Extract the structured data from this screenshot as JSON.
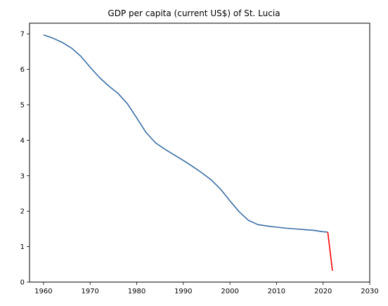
{
  "chart_data": {
    "type": "line",
    "title": "GDP per capita (current US$) of St. Lucia",
    "xlabel": "",
    "ylabel": "",
    "xlim": [
      1957,
      2030
    ],
    "ylim": [
      0,
      7.3
    ],
    "x_ticks": [
      1960,
      1970,
      1980,
      1990,
      2000,
      2010,
      2020,
      2030
    ],
    "y_ticks": [
      0,
      1,
      2,
      3,
      4,
      5,
      6,
      7
    ],
    "grid": false,
    "series": [
      {
        "color": "#3a6ea5",
        "x": [
          1960,
          1962,
          1964,
          1966,
          1968,
          1970,
          1972,
          1974,
          1976,
          1978,
          1980,
          1982,
          1984,
          1986,
          1988,
          1990,
          1992,
          1994,
          1996,
          1998,
          2000,
          2002,
          2004,
          2006,
          2008,
          2010,
          2012,
          2014,
          2016,
          2018,
          2020,
          2021
        ],
        "values": [
          6.97,
          6.88,
          6.76,
          6.6,
          6.37,
          6.06,
          5.77,
          5.53,
          5.32,
          5.03,
          4.63,
          4.22,
          3.93,
          3.75,
          3.59,
          3.43,
          3.26,
          3.08,
          2.88,
          2.62,
          2.29,
          1.98,
          1.74,
          1.62,
          1.58,
          1.55,
          1.52,
          1.5,
          1.48,
          1.46,
          1.42,
          1.41
        ]
      },
      {
        "color": "#ff0000",
        "x": [
          2021,
          2022
        ],
        "values": [
          1.41,
          0.32
        ]
      }
    ]
  }
}
